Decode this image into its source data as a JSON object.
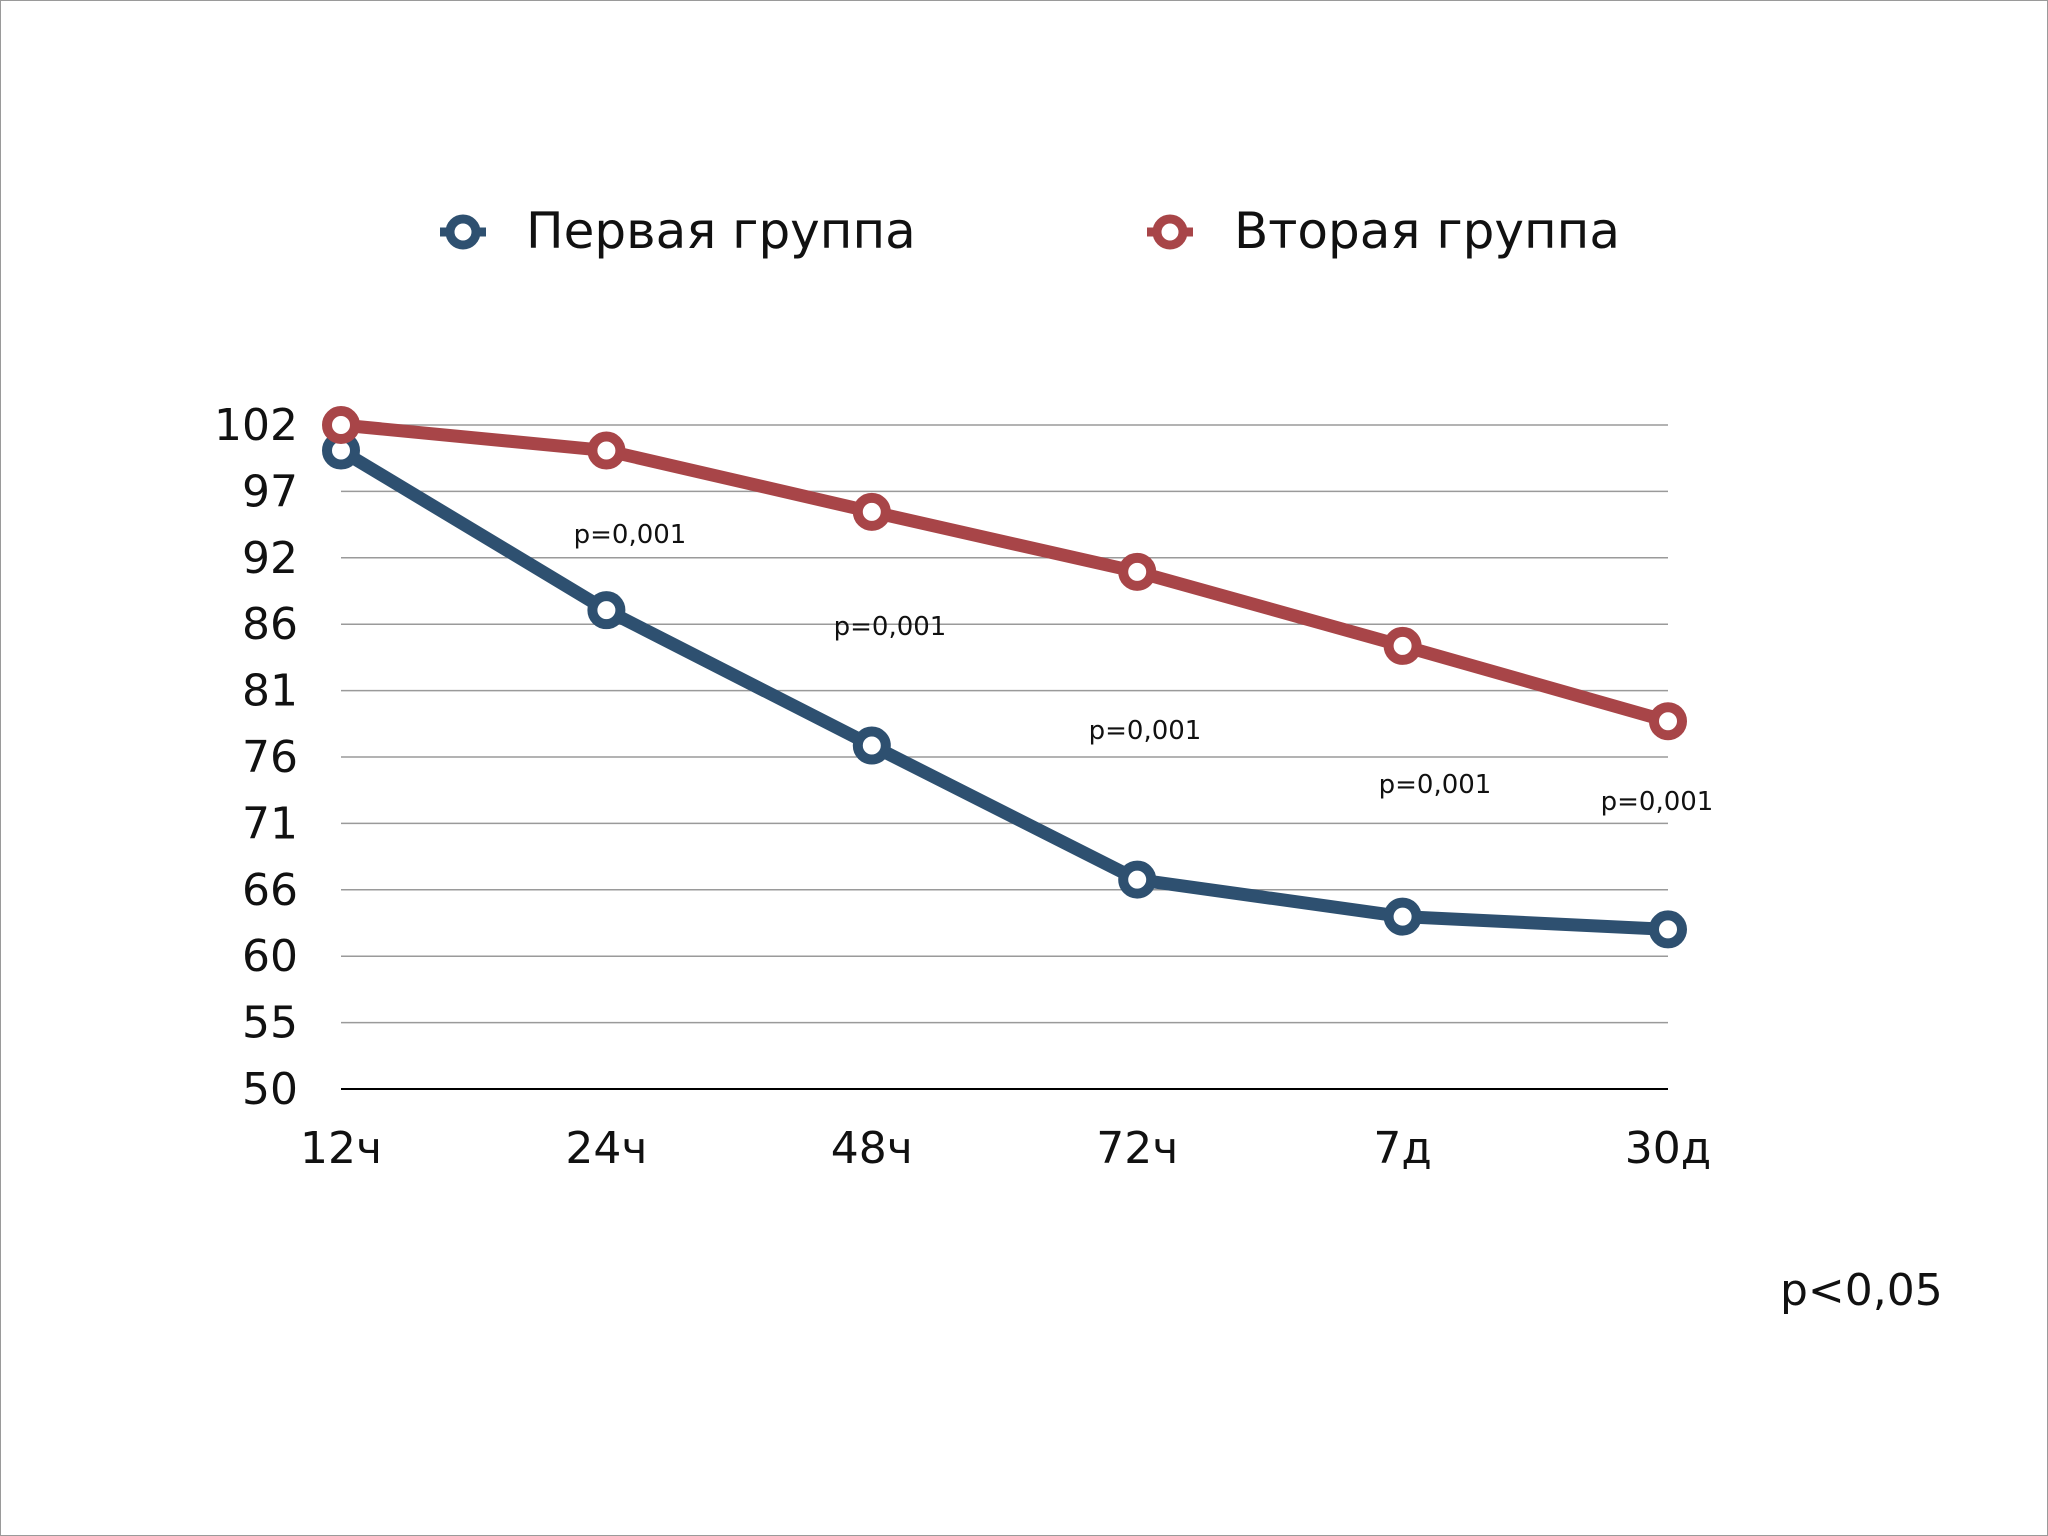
{
  "chart_data": {
    "type": "line",
    "categories": [
      "12ч",
      "24ч",
      "48ч",
      "72ч",
      "7д",
      "30д"
    ],
    "y_ticks": [
      "50",
      "55",
      "60",
      "66",
      "71",
      "76",
      "81",
      "86",
      "92",
      "97",
      "102"
    ],
    "ylim": [
      50,
      102
    ],
    "grid": true,
    "legend_position": "top",
    "series": [
      {
        "name": "Первая группа",
        "color": "#2e5070",
        "values": [
          100.0,
          87.5,
          76.9,
          66.4,
          63.5,
          62.5
        ]
      },
      {
        "name": "Вторая группа",
        "color": "#a84548",
        "values": [
          102.0,
          100.0,
          95.2,
          90.5,
          84.7,
          78.8
        ]
      }
    ],
    "annotations": [
      "p=0,001",
      "p=0,001",
      "p=0,001",
      "p=0,001",
      "p=0,001"
    ],
    "footnote": "p<0,05"
  }
}
